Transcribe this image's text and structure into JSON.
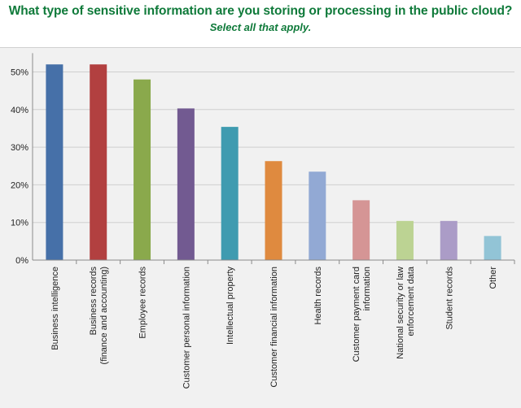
{
  "chart_data": {
    "type": "bar",
    "title": "What type of sensitive information are you storing or processing in the public cloud?",
    "subtitle": "Select all that apply.",
    "categories": [
      [
        "Business intelligence"
      ],
      [
        "Business records",
        "(finance and accounting)"
      ],
      [
        "Employee records"
      ],
      [
        "Customer personal information"
      ],
      [
        "Intellectual property"
      ],
      [
        "Customer financial information"
      ],
      [
        "Health records"
      ],
      [
        "Customer payment card",
        "information"
      ],
      [
        "National security or law",
        "enforcement data"
      ],
      [
        "Student records"
      ],
      [
        "Other"
      ]
    ],
    "values": [
      52,
      52,
      48,
      40.3,
      35.4,
      26.3,
      23.5,
      15.9,
      10.4,
      10.4,
      6.4
    ],
    "colors": [
      "#4670a8",
      "#b24040",
      "#8aa94c",
      "#725a91",
      "#3f9bb0",
      "#df8a3f",
      "#92a9d4",
      "#d59595",
      "#bcd393",
      "#ab9cc7",
      "#92c4d6"
    ],
    "yticks": [
      "0%",
      "10%",
      "20%",
      "30%",
      "40%",
      "50%"
    ],
    "ylim": [
      0,
      55
    ],
    "grid": true
  }
}
